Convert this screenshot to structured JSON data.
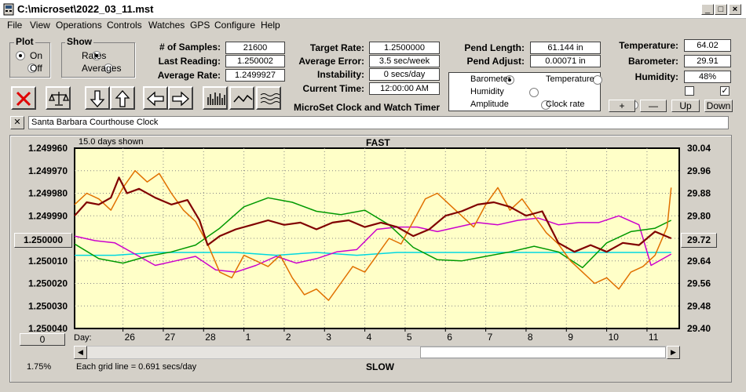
{
  "window": {
    "title": "C:\\microset\\2022_03_11.mst"
  },
  "menu": [
    "File",
    "View",
    "Operations",
    "Controls",
    "Watches",
    "GPS",
    "Configure",
    "Help"
  ],
  "plot_group": {
    "title": "Plot",
    "on": "On",
    "off": "Off",
    "selected": "On"
  },
  "show_group": {
    "title": "Show",
    "rates": "Rates",
    "averages": "Averages",
    "selected": "Rates"
  },
  "stats": {
    "samples_label": "# of Samples:",
    "samples": "21600",
    "last_reading_label": "Last Reading:",
    "last_reading": "1.250002",
    "average_rate_label": "Average Rate:",
    "average_rate": "1.2499927",
    "target_rate_label": "Target Rate:",
    "target_rate": "1.2500000",
    "average_error_label": "Average Error:",
    "average_error": "3.5 sec/week",
    "instability_label": "Instability:",
    "instability": "0 secs/day",
    "current_time_label": "Current Time:",
    "current_time": "12:00:00 AM",
    "pend_length_label": "Pend Length:",
    "pend_length": "61.144 in",
    "pend_adjust_label": "Pend Adjust:",
    "pend_adjust": "0.00071 in",
    "temperature_label": "Temperature:",
    "temperature": "64.02",
    "barometer_label": "Barometer:",
    "barometer": "29.91",
    "humidity_label": "Humidity:",
    "humidity": "48%"
  },
  "app_caption": "MicroSet Clock and Watch Timer",
  "sensor_options": [
    {
      "label": "Barometer",
      "color": "#e07000",
      "selected": true
    },
    {
      "label": "Temperature",
      "color": "#009900",
      "selected": false
    },
    {
      "label": "Humidity",
      "color": "#cc00cc",
      "selected": false
    },
    {
      "label": "Clock rate",
      "color": "#800000",
      "selected": false
    },
    {
      "label": "Amplitude",
      "color": "#00c8c8",
      "selected": false
    }
  ],
  "adjust_buttons": {
    "plus": "+",
    "minus": "—",
    "up": "Up",
    "down": "Down"
  },
  "checkbox2_mark": "✓",
  "clock_name": "Santa Barbara Courthouse Clock",
  "close_x": "✕",
  "days_shown": "15.0 days shown",
  "fast_label": "FAST",
  "slow_label": "SLOW",
  "grid_note": "Each grid line = 0.691 secs/day",
  "percent": "1.75%",
  "left_center_button": "1.250000",
  "right_center_button": "29.72",
  "left_bottom_button": "0",
  "day_label": "Day:",
  "chart_data": {
    "type": "line",
    "left_axis_labels": [
      "1.249960",
      "1.249970",
      "1.249980",
      "1.249990",
      "1.250000",
      "1.250010",
      "1.250020",
      "1.250030",
      "1.250040"
    ],
    "right_axis_labels": [
      "30.04",
      "29.96",
      "29.88",
      "29.80",
      "29.72",
      "29.64",
      "29.56",
      "29.48",
      "29.40"
    ],
    "ylim_rate": [
      1.25004,
      1.24996
    ],
    "ylim_right": [
      29.4,
      30.04
    ],
    "x_tick_labels": [
      "26",
      "27",
      "28",
      "1",
      "2",
      "3",
      "4",
      "5",
      "6",
      "7",
      "8",
      "9",
      "10",
      "11"
    ],
    "xlim_days": [
      0,
      15
    ],
    "x_tick_positions": [
      1.2,
      2.2,
      3.2,
      4.2,
      5.2,
      6.2,
      7.2,
      8.2,
      9.2,
      10.2,
      11.2,
      12.2,
      13.2,
      14.2
    ],
    "series": [
      {
        "name": "Clock rate",
        "color": "#800000",
        "width": 2.2,
        "x": [
          0,
          0.3,
          0.6,
          0.9,
          1.1,
          1.3,
          1.6,
          2.0,
          2.4,
          2.8,
          3.1,
          3.3,
          3.6,
          4.0,
          4.4,
          4.8,
          5.2,
          5.6,
          6.0,
          6.4,
          6.8,
          7.2,
          7.6,
          8.0,
          8.4,
          8.8,
          9.2,
          9.6,
          10.0,
          10.4,
          10.8,
          11.2,
          11.6,
          12.0,
          12.4,
          12.8,
          13.2,
          13.6,
          14.0,
          14.4,
          14.8
        ],
        "y": [
          1.24999,
          1.249984,
          1.249985,
          1.249982,
          1.249973,
          1.24998,
          1.249978,
          1.249982,
          1.249985,
          1.249983,
          1.249992,
          1.250003,
          1.249999,
          1.249996,
          1.249994,
          1.249992,
          1.249994,
          1.249993,
          1.249996,
          1.249993,
          1.249992,
          1.249995,
          1.249993,
          1.249995,
          1.249999,
          1.249996,
          1.24999,
          1.249988,
          1.249985,
          1.249984,
          1.249986,
          1.24999,
          1.249988,
          1.250002,
          1.250006,
          1.250003,
          1.250006,
          1.250002,
          1.250003,
          1.249997,
          1.25
        ]
      },
      {
        "name": "Barometer",
        "color": "#e07000",
        "width": 1.5,
        "x": [
          0,
          0.3,
          0.6,
          0.9,
          1.2,
          1.5,
          1.8,
          2.1,
          2.4,
          2.7,
          3.0,
          3.3,
          3.6,
          3.9,
          4.2,
          4.5,
          4.8,
          5.1,
          5.4,
          5.7,
          6.0,
          6.3,
          6.6,
          6.9,
          7.2,
          7.5,
          7.8,
          8.1,
          8.4,
          8.7,
          9.0,
          9.3,
          9.6,
          9.9,
          10.2,
          10.5,
          10.8,
          11.1,
          11.4,
          11.7,
          12.0,
          12.3,
          12.6,
          12.9,
          13.2,
          13.5,
          13.8,
          14.1,
          14.4,
          14.7,
          14.8
        ],
        "y": [
          29.84,
          29.88,
          29.86,
          29.82,
          29.9,
          29.96,
          29.92,
          29.95,
          29.88,
          29.82,
          29.78,
          29.7,
          29.6,
          29.58,
          29.66,
          29.64,
          29.62,
          29.66,
          29.58,
          29.52,
          29.54,
          29.5,
          29.56,
          29.62,
          29.6,
          29.66,
          29.72,
          29.7,
          29.78,
          29.86,
          29.88,
          29.84,
          29.8,
          29.76,
          29.84,
          29.9,
          29.82,
          29.86,
          29.8,
          29.74,
          29.7,
          29.64,
          29.6,
          29.56,
          29.58,
          29.54,
          29.6,
          29.62,
          29.66,
          29.76,
          29.9
        ]
      },
      {
        "name": "Temperature",
        "color": "#009900",
        "width": 1.5,
        "x": [
          0,
          0.6,
          1.2,
          1.8,
          2.4,
          3.0,
          3.6,
          4.2,
          4.8,
          5.4,
          6.0,
          6.6,
          7.2,
          7.8,
          8.4,
          9.0,
          9.6,
          10.2,
          10.8,
          11.4,
          12.0,
          12.6,
          13.2,
          13.8,
          14.4,
          14.8
        ],
        "y": [
          67.5,
          66.2,
          65.8,
          66.4,
          66.8,
          67.4,
          68.9,
          70.8,
          71.6,
          71.2,
          70.4,
          70.1,
          70.5,
          69.2,
          67.2,
          66.1,
          66.0,
          66.4,
          66.8,
          67.3,
          66.8,
          65.4,
          67.6,
          68.6,
          68.9,
          69.6
        ]
      },
      {
        "name": "Humidity",
        "color": "#cc00cc",
        "width": 1.5,
        "x": [
          0,
          0.5,
          1.0,
          1.5,
          2.0,
          2.5,
          3.0,
          3.5,
          4.0,
          4.5,
          5.0,
          5.5,
          6.0,
          6.5,
          7.0,
          7.5,
          8.0,
          8.5,
          9.0,
          9.5,
          10.0,
          10.5,
          11.0,
          11.5,
          12.0,
          12.5,
          13.0,
          13.5,
          14.0,
          14.3,
          14.8
        ],
        "y": [
          46.2,
          45.8,
          45.6,
          44.6,
          43.6,
          44.0,
          44.4,
          43.2,
          43.0,
          43.6,
          44.4,
          43.8,
          44.2,
          44.8,
          45.0,
          46.8,
          47.0,
          47.0,
          46.6,
          47.0,
          47.4,
          47.2,
          47.6,
          47.8,
          47.2,
          47.4,
          47.4,
          48.0,
          47.2,
          43.6,
          44.6
        ]
      },
      {
        "name": "Amplitude",
        "color": "#00d8e0",
        "width": 1.5,
        "x": [
          0,
          1.0,
          2.0,
          3.0,
          4.0,
          5.0,
          6.0,
          7.0,
          8.0,
          9.0,
          10.0,
          11.0,
          12.0,
          13.0,
          14.0,
          14.8
        ],
        "y": [
          29.66,
          29.66,
          29.67,
          29.67,
          29.67,
          29.66,
          29.67,
          29.66,
          29.67,
          29.67,
          29.67,
          29.67,
          29.67,
          29.67,
          29.67,
          29.67
        ]
      }
    ]
  }
}
